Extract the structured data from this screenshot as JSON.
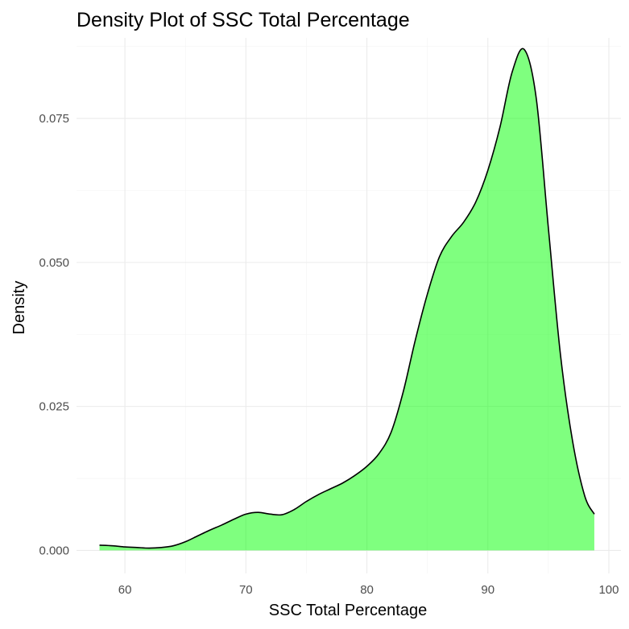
{
  "chart_data": {
    "type": "area",
    "title": "Density Plot of SSC Total Percentage",
    "xlabel": "SSC Total Percentage",
    "ylabel": "Density",
    "xlim": [
      56,
      101
    ],
    "ylim": [
      -0.004,
      0.089
    ],
    "x_ticks": [
      60,
      70,
      80,
      90,
      100
    ],
    "x_tick_labels": [
      "60",
      "70",
      "80",
      "90",
      "100"
    ],
    "y_ticks": [
      0,
      0.025,
      0.05,
      0.075
    ],
    "y_tick_labels": [
      "0.000",
      "0.025",
      "0.050",
      "0.075"
    ],
    "grid": true,
    "fill_color": "#00ff00",
    "fill_alpha": 0.5,
    "line_color": "#000000",
    "series": [
      {
        "x": [
          57.9,
          59,
          60,
          61,
          62,
          63,
          64,
          65,
          66,
          67,
          68,
          69,
          70,
          71,
          72,
          73,
          74,
          75,
          76,
          77,
          78,
          79,
          80,
          81,
          82,
          83,
          84,
          85,
          86,
          87,
          88,
          89,
          90,
          91,
          92,
          93,
          94,
          95,
          96,
          97,
          98,
          98.8
        ],
        "y": [
          0.0009,
          0.0008,
          0.0006,
          0.0005,
          0.0004,
          0.0005,
          0.0008,
          0.0015,
          0.0025,
          0.0035,
          0.0044,
          0.0054,
          0.0063,
          0.0066,
          0.0063,
          0.0062,
          0.0071,
          0.0085,
          0.0097,
          0.0107,
          0.0117,
          0.013,
          0.0146,
          0.0168,
          0.0205,
          0.0275,
          0.0365,
          0.0445,
          0.051,
          0.0545,
          0.057,
          0.0605,
          0.066,
          0.0735,
          0.083,
          0.087,
          0.0785,
          0.056,
          0.034,
          0.019,
          0.0095,
          0.0063
        ]
      }
    ]
  }
}
